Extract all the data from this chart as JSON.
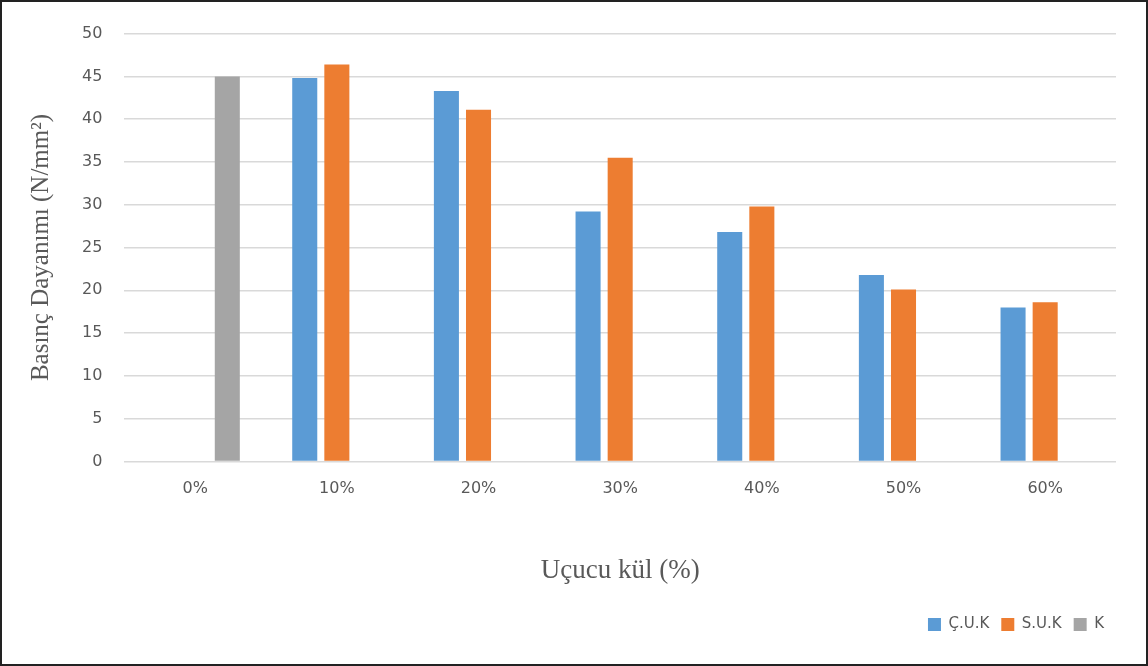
{
  "chart_data": {
    "type": "bar",
    "xlabel": "Uçucu kül (%)",
    "ylabel": "Basınç Dayanımı (N/mm²)",
    "categories": [
      "0%",
      "10%",
      "20%",
      "30%",
      "40%",
      "50%",
      "60%"
    ],
    "series": [
      {
        "name": "Ç.U.K",
        "color": "#5b9bd5",
        "values": [
          null,
          44.8,
          43.3,
          29.2,
          26.8,
          21.8,
          18.0
        ]
      },
      {
        "name": "S.U.K",
        "color": "#ed7d31",
        "values": [
          null,
          46.4,
          41.1,
          35.5,
          29.8,
          20.1,
          18.6
        ]
      },
      {
        "name": "K",
        "color": "#a5a5a5",
        "values": [
          45.0,
          null,
          null,
          null,
          null,
          null,
          null
        ]
      }
    ],
    "ylim": [
      0,
      50
    ],
    "yticks": [
      0,
      5,
      10,
      15,
      20,
      25,
      30,
      35,
      40,
      45,
      50
    ],
    "grid": "y",
    "legend": "bottom right"
  }
}
